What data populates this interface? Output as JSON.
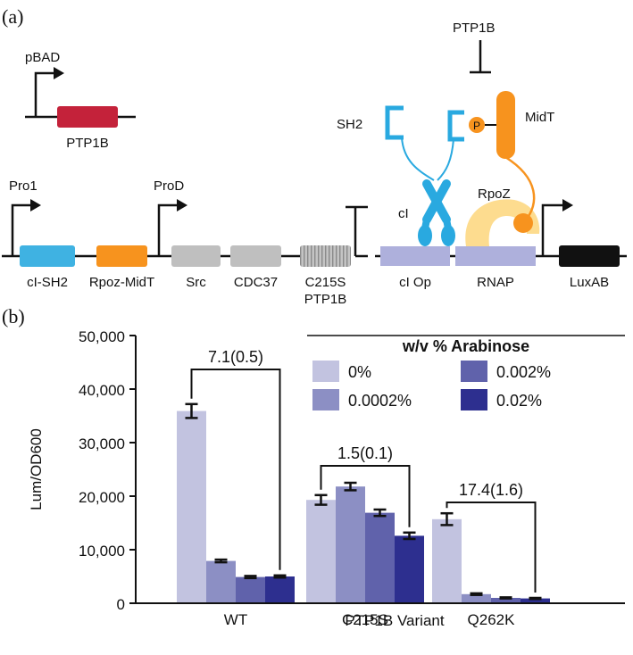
{
  "panel_a": {
    "label": "(a)",
    "pbad": {
      "promoter": "pBAD",
      "gene": "PTP1B",
      "gene_color": "#c4223a"
    },
    "operon": {
      "promoter1": "Pro1",
      "promoter2": "ProD",
      "genes": [
        {
          "label": "cI-SH2",
          "color": "#3fb2e2",
          "striped": false
        },
        {
          "label": "Rpoz-MidT",
          "color": "#f7931e",
          "striped": false
        },
        {
          "label": "Src",
          "color": "#bfbfbf",
          "striped": false
        },
        {
          "label": "CDC37",
          "color": "#bfbfbf",
          "striped": false
        },
        {
          "label": "C215S",
          "label2": "PTP1B",
          "color": "#bfbfbf",
          "striped": true
        }
      ]
    },
    "reporter": {
      "inhibitor": "PTP1B",
      "sh2": "SH2",
      "phospho": "P",
      "midt": "MidT",
      "ci": "cI",
      "rpoz": "RpoZ",
      "ci_op": "cI Op",
      "rnap": "RNAP",
      "luxab": "LuxAB",
      "colors": {
        "cyan": "#29a9e0",
        "orange": "#f7931e",
        "rpoz": "#fddc8f",
        "site": "#aeb0dc",
        "lux": "#111111"
      }
    }
  },
  "panel_b": {
    "label": "(b)",
    "chart_data": {
      "type": "bar",
      "xlabel": "PTP1B Variant",
      "ylabel": "Lum/OD600",
      "ylim": [
        0,
        50000
      ],
      "yticks": [
        0,
        10000,
        20000,
        30000,
        40000,
        50000
      ],
      "ytick_labels": [
        "0",
        "10,000",
        "20,000",
        "30,000",
        "40,000",
        "50,000"
      ],
      "legend_title": "w/v % Arabinose",
      "legend_position": "top-right",
      "categories": [
        "WT",
        "C215S",
        "Q262K"
      ],
      "series": [
        {
          "name": "0%",
          "color": "#c2c3e0",
          "values": [
            35900,
            19300,
            15700
          ],
          "errors": [
            1300,
            900,
            1100
          ]
        },
        {
          "name": "0.0002%",
          "color": "#8c8fc4",
          "values": [
            7900,
            21800,
            1700
          ],
          "errors": [
            250,
            700,
            150
          ]
        },
        {
          "name": "0.002%",
          "color": "#6062ab",
          "values": [
            4900,
            16900,
            1000
          ],
          "errors": [
            200,
            600,
            100
          ]
        },
        {
          "name": "0.02%",
          "color": "#2d2f8f",
          "values": [
            5000,
            12600,
            900
          ],
          "errors": [
            200,
            600,
            100
          ]
        }
      ],
      "annotations": [
        "7.1(0.5)",
        "1.5(0.1)",
        "17.4(1.6)"
      ]
    }
  }
}
